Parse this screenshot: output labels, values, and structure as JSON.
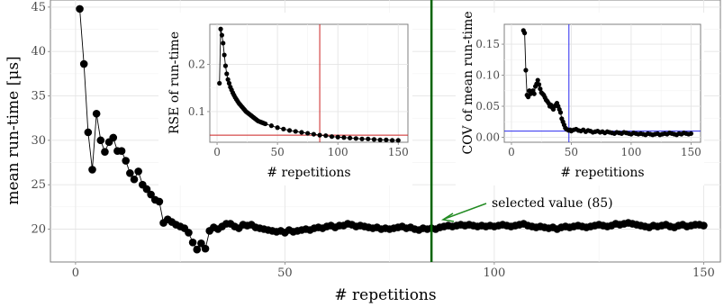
{
  "chart_data": [
    {
      "type": "scatter",
      "xlabel": "# repetitions",
      "ylabel": "mean run-time [μs]",
      "xlim": [
        -6,
        154
      ],
      "ylim": [
        16.3,
        45.8
      ],
      "xticks": [
        0,
        50,
        100,
        150
      ],
      "yticks": [
        20,
        25,
        30,
        35,
        40,
        45
      ],
      "grid": true,
      "x": [
        1,
        2,
        3,
        4,
        5,
        6,
        7,
        8,
        9,
        10,
        11,
        12,
        13,
        14,
        15,
        16,
        17,
        18,
        19,
        20,
        21,
        22,
        23,
        24,
        25,
        26,
        27,
        28,
        29,
        30,
        31,
        32,
        33,
        34,
        35,
        36,
        37,
        38,
        39,
        40,
        41,
        42,
        43,
        44,
        45,
        46,
        47,
        48,
        49,
        50,
        51,
        52,
        53,
        54,
        55,
        56,
        57,
        58,
        59,
        60,
        61,
        62,
        63,
        64,
        65,
        66,
        67,
        68,
        69,
        70,
        71,
        72,
        73,
        74,
        75,
        76,
        77,
        78,
        79,
        80,
        81,
        82,
        83,
        84,
        85,
        86,
        87,
        88,
        89,
        90,
        91,
        92,
        93,
        94,
        95,
        96,
        97,
        98,
        99,
        100,
        101,
        102,
        103,
        104,
        105,
        106,
        107,
        108,
        109,
        110,
        111,
        112,
        113,
        114,
        115,
        116,
        117,
        118,
        119,
        120,
        121,
        122,
        123,
        124,
        125,
        126,
        127,
        128,
        129,
        130,
        131,
        132,
        133,
        134,
        135,
        136,
        137,
        138,
        139,
        140,
        141,
        142,
        143,
        144,
        145,
        146,
        147,
        148,
        149,
        150
      ],
      "y": [
        44.8,
        38.6,
        30.9,
        26.7,
        33.0,
        30.0,
        28.7,
        29.8,
        30.3,
        28.8,
        28.8,
        27.7,
        26.3,
        25.6,
        26.5,
        25.0,
        24.5,
        23.9,
        23.3,
        23.1,
        20.7,
        21.1,
        20.8,
        20.5,
        20.3,
        20.1,
        19.6,
        18.5,
        17.7,
        18.4,
        17.8,
        19.8,
        20.2,
        20.0,
        20.3,
        20.6,
        20.6,
        20.3,
        20.1,
        20.5,
        20.4,
        20.5,
        20.2,
        20.1,
        20.0,
        19.9,
        19.8,
        19.7,
        19.8,
        19.6,
        19.9,
        19.7,
        19.8,
        19.9,
        20.0,
        19.9,
        20.1,
        20.2,
        20.1,
        20.3,
        20.4,
        20.2,
        20.4,
        20.4,
        20.6,
        20.5,
        20.3,
        20.4,
        20.3,
        20.2,
        20.1,
        20.2,
        20.0,
        20.1,
        20.0,
        20.1,
        20.2,
        20.3,
        20.1,
        20.2,
        20.0,
        19.9,
        20.1,
        20.0,
        20.1,
        20.0,
        20.2,
        20.3,
        20.4,
        20.3,
        20.4,
        20.5,
        20.4,
        20.5,
        20.4,
        20.3,
        20.4,
        20.3,
        20.4,
        20.3,
        20.4,
        20.5,
        20.4,
        20.3,
        20.4,
        20.5,
        20.6,
        20.4,
        20.3,
        20.2,
        20.3,
        20.2,
        20.1,
        20.2,
        20.0,
        20.2,
        20.3,
        20.2,
        20.3,
        20.4,
        20.3,
        20.2,
        20.3,
        20.4,
        20.5,
        20.4,
        20.3,
        20.4,
        20.6,
        20.5,
        20.6,
        20.7,
        20.6,
        20.5,
        20.4,
        20.3,
        20.2,
        20.4,
        20.3,
        20.4,
        20.5,
        20.3,
        20.2,
        20.4,
        20.5,
        20.3,
        20.4,
        20.5,
        20.5,
        20.4
      ],
      "annotations": [
        {
          "type": "vline",
          "x": 85,
          "color": "#006400"
        },
        {
          "type": "text",
          "text": "selected value (85)",
          "color": "#228B22"
        }
      ],
      "insets": [
        {
          "type": "scatter",
          "xlabel": "# repetitions",
          "ylabel": "RSE of run-time",
          "xlim": [
            -6,
            158
          ],
          "ylim": [
            0.035,
            0.285
          ],
          "xticks": [
            0,
            50,
            100,
            150
          ],
          "yticks": [
            0.1,
            0.2
          ],
          "ytick_labels": [
            "0.1",
            "0.2"
          ],
          "grid": true,
          "hline": {
            "y": 0.05,
            "color": "#cc2222"
          },
          "vline": {
            "x": 85,
            "color": "#cc2222"
          },
          "x": [
            2,
            3,
            4,
            5,
            6,
            7,
            8,
            9,
            10,
            11,
            12,
            13,
            14,
            15,
            16,
            17,
            18,
            19,
            20,
            21,
            22,
            23,
            24,
            25,
            26,
            27,
            28,
            29,
            30,
            31,
            32,
            33,
            34,
            35,
            36,
            37,
            38,
            39,
            40,
            45,
            50,
            55,
            60,
            65,
            70,
            75,
            80,
            85,
            90,
            95,
            100,
            105,
            110,
            115,
            120,
            125,
            130,
            135,
            140,
            145,
            150
          ],
          "y": [
            0.16,
            0.275,
            0.262,
            0.245,
            0.22,
            0.197,
            0.18,
            0.168,
            0.16,
            0.152,
            0.146,
            0.14,
            0.135,
            0.13,
            0.126,
            0.122,
            0.118,
            0.115,
            0.112,
            0.109,
            0.106,
            0.103,
            0.1,
            0.098,
            0.096,
            0.094,
            0.092,
            0.09,
            0.088,
            0.086,
            0.084,
            0.082,
            0.08,
            0.079,
            0.078,
            0.077,
            0.076,
            0.075,
            0.074,
            0.07,
            0.066,
            0.063,
            0.06,
            0.058,
            0.056,
            0.054,
            0.052,
            0.05,
            0.049,
            0.047,
            0.046,
            0.045,
            0.044,
            0.043,
            0.042,
            0.042,
            0.041,
            0.04,
            0.04,
            0.039,
            0.039
          ]
        },
        {
          "type": "scatter",
          "xlabel": "# repetitions",
          "ylabel": "COV of mean run-time",
          "xlim": [
            -6,
            158
          ],
          "ylim": [
            -0.008,
            0.182
          ],
          "xticks": [
            0,
            50,
            100,
            150
          ],
          "yticks": [
            0.0,
            0.05,
            0.1,
            0.15
          ],
          "ytick_labels": [
            "0.00",
            "0.05",
            "0.10",
            "0.15"
          ],
          "grid": true,
          "hline": {
            "y": 0.01,
            "color": "#2a2af0"
          },
          "vline": {
            "x": 48,
            "color": "#2a2af0"
          },
          "x": [
            10,
            11,
            12,
            13,
            14,
            15,
            16,
            17,
            18,
            19,
            20,
            21,
            22,
            23,
            24,
            25,
            26,
            27,
            28,
            29,
            30,
            31,
            32,
            33,
            34,
            35,
            36,
            37,
            38,
            39,
            40,
            41,
            42,
            43,
            44,
            45,
            46,
            47,
            48,
            49,
            50,
            52,
            54,
            56,
            58,
            60,
            62,
            64,
            66,
            68,
            70,
            72,
            74,
            76,
            78,
            80,
            82,
            84,
            86,
            88,
            90,
            92,
            94,
            96,
            98,
            100,
            102,
            104,
            106,
            108,
            110,
            112,
            114,
            116,
            118,
            120,
            122,
            124,
            126,
            128,
            130,
            132,
            134,
            136,
            138,
            140,
            142,
            144,
            146,
            148,
            150
          ],
          "y": [
            0.172,
            0.168,
            0.108,
            0.068,
            0.065,
            0.075,
            0.07,
            0.072,
            0.075,
            0.07,
            0.082,
            0.086,
            0.092,
            0.085,
            0.078,
            0.072,
            0.07,
            0.068,
            0.064,
            0.06,
            0.058,
            0.055,
            0.05,
            0.052,
            0.048,
            0.045,
            0.05,
            0.052,
            0.055,
            0.05,
            0.045,
            0.04,
            0.03,
            0.025,
            0.02,
            0.015,
            0.013,
            0.012,
            0.011,
            0.012,
            0.01,
            0.012,
            0.013,
            0.011,
            0.01,
            0.012,
            0.009,
            0.011,
            0.01,
            0.008,
            0.009,
            0.01,
            0.008,
            0.009,
            0.007,
            0.009,
            0.008,
            0.007,
            0.006,
            0.008,
            0.007,
            0.006,
            0.008,
            0.007,
            0.006,
            0.005,
            0.007,
            0.006,
            0.005,
            0.006,
            0.005,
            0.004,
            0.006,
            0.005,
            0.004,
            0.005,
            0.006,
            0.004,
            0.005,
            0.006,
            0.005,
            0.007,
            0.006,
            0.005,
            0.004,
            0.006,
            0.005,
            0.007,
            0.006,
            0.005,
            0.006
          ]
        }
      ]
    }
  ]
}
